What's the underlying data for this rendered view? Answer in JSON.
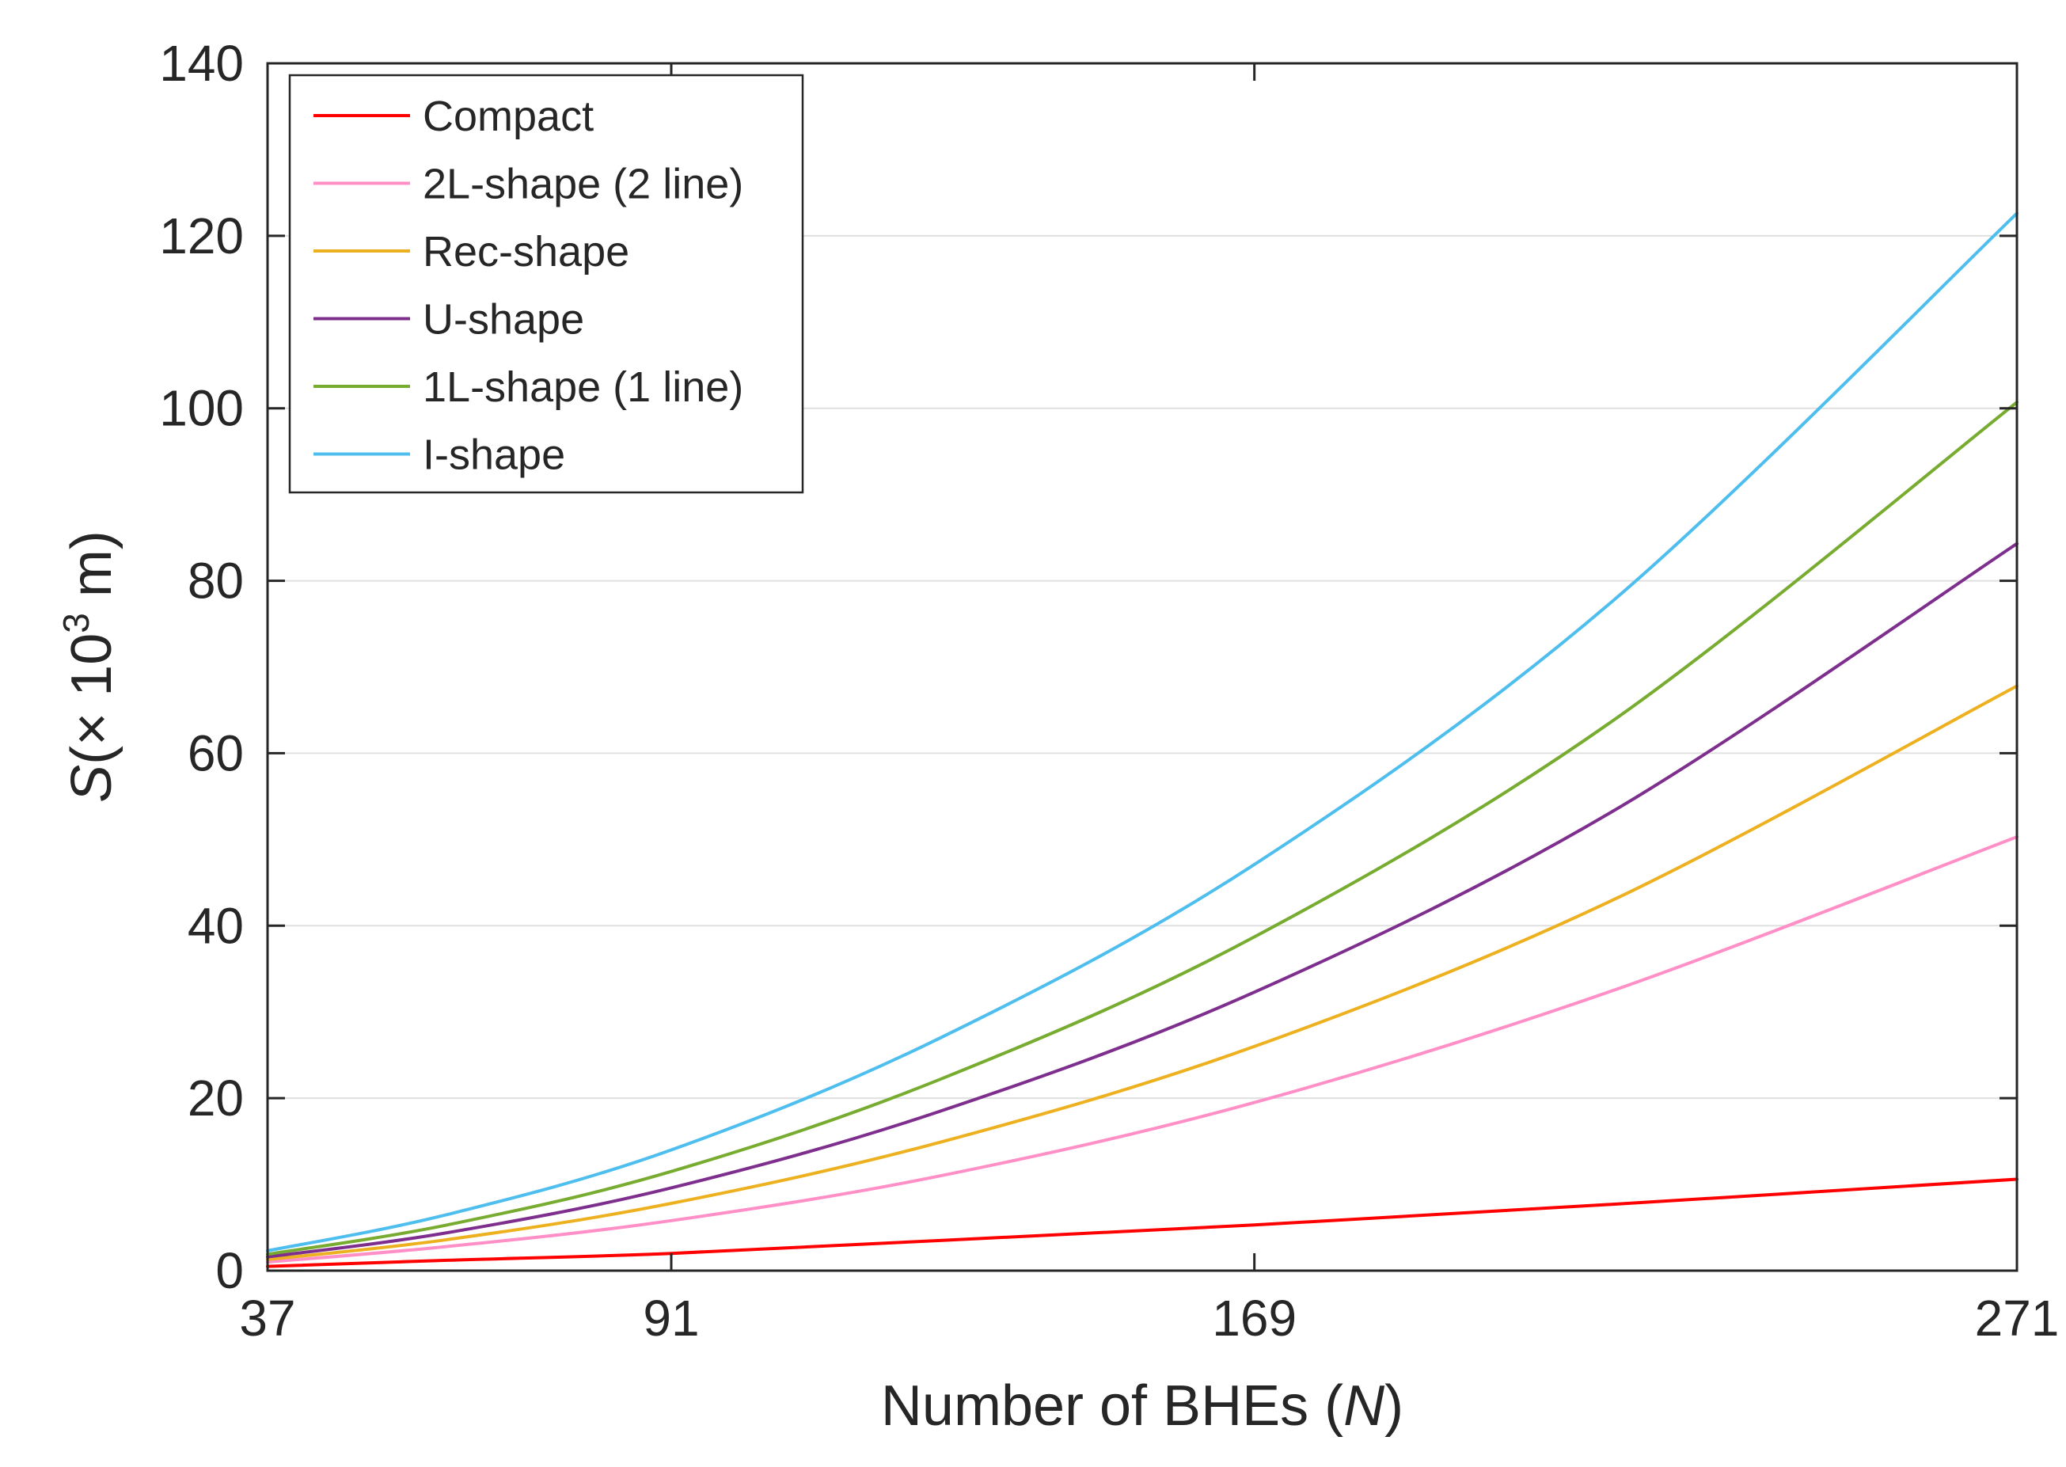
{
  "chart_data": {
    "type": "line",
    "title": "",
    "xlabel": "Number of BHEs (",
    "xlabel_var": "N",
    "xlabel_close": ")",
    "ylabel_var": "S",
    "ylabel_unit_pre": "(× 10",
    "ylabel_exp": "3",
    "ylabel_unit_post": " m)",
    "xlim": [
      37,
      271
    ],
    "ylim": [
      0,
      140
    ],
    "xticks": [
      37,
      91,
      169,
      271
    ],
    "yticks": [
      0,
      20,
      40,
      60,
      80,
      100,
      120,
      140
    ],
    "grid": "y",
    "legend_position": "top-left",
    "x": [
      37,
      61,
      91,
      127,
      169,
      217,
      271
    ],
    "series": [
      {
        "name": "Compact",
        "color": "#ff0000",
        "values": [
          0.5,
          1.2,
          2.0,
          3.5,
          5.3,
          7.7,
          10.6
        ]
      },
      {
        "name": "2L-shape (2 line)",
        "color": "#ff8fc6",
        "values": [
          1.0,
          2.8,
          5.8,
          11.0,
          19.5,
          32.5,
          50.3
        ]
      },
      {
        "name": "Rec-shape",
        "color": "#edb120",
        "values": [
          1.3,
          3.6,
          7.8,
          14.9,
          26.0,
          43.0,
          67.8
        ]
      },
      {
        "name": "U-shape",
        "color": "#7e2f8e",
        "values": [
          1.6,
          4.4,
          9.6,
          18.5,
          32.3,
          53.3,
          84.3
        ]
      },
      {
        "name": "1L-shape (1 line)",
        "color": "#77ac30",
        "values": [
          1.9,
          5.3,
          11.5,
          22.2,
          38.7,
          63.8,
          100.7
        ]
      },
      {
        "name": "I-shape",
        "color": "#4dbeee",
        "values": [
          2.3,
          6.5,
          14.0,
          27.0,
          47.1,
          77.7,
          122.6
        ]
      }
    ]
  }
}
